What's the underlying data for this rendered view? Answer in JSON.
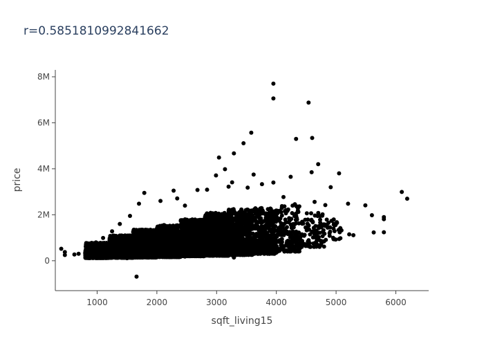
{
  "chart_data": {
    "type": "scatter",
    "title": "r=0.5851810992841662",
    "xlabel": "sqft_living15",
    "ylabel": "price",
    "xlim": [
      300,
      6550
    ],
    "ylim": [
      -1300000,
      8300000
    ],
    "x_ticks": [
      {
        "value": 1000,
        "label": "1000"
      },
      {
        "value": 2000,
        "label": "2000"
      },
      {
        "value": 3000,
        "label": "3000"
      },
      {
        "value": 4000,
        "label": "4000"
      },
      {
        "value": 5000,
        "label": "5000"
      },
      {
        "value": 6000,
        "label": "6000"
      }
    ],
    "y_ticks": [
      {
        "value": 0,
        "label": "0"
      },
      {
        "value": 2000000,
        "label": "2M"
      },
      {
        "value": 4000000,
        "label": "4M"
      },
      {
        "value": 6000000,
        "label": "6M"
      },
      {
        "value": 8000000,
        "label": "8M"
      }
    ],
    "grid": false,
    "marker_color": "#000000",
    "points": [
      [
        399,
        520000
      ],
      [
        460,
        250000
      ],
      [
        460,
        380000
      ],
      [
        620,
        270000
      ],
      [
        690,
        300000
      ],
      [
        1660,
        -690000
      ],
      [
        3950,
        7700000
      ],
      [
        3950,
        7060000
      ],
      [
        4540,
        6880000
      ],
      [
        4600,
        5340000
      ],
      [
        4330,
        5300000
      ],
      [
        3580,
        5570000
      ],
      [
        3450,
        5110000
      ],
      [
        3290,
        4670000
      ],
      [
        3040,
        4490000
      ],
      [
        3140,
        3980000
      ],
      [
        2990,
        3710000
      ],
      [
        4700,
        4200000
      ],
      [
        4590,
        3850000
      ],
      [
        5050,
        3800000
      ],
      [
        4910,
        3200000
      ],
      [
        4240,
        3650000
      ],
      [
        3950,
        3400000
      ],
      [
        3760,
        3330000
      ],
      [
        3520,
        3180000
      ],
      [
        3620,
        3750000
      ],
      [
        3260,
        3410000
      ],
      [
        3200,
        3220000
      ],
      [
        2840,
        3090000
      ],
      [
        2680,
        3080000
      ],
      [
        2280,
        3050000
      ],
      [
        1790,
        2950000
      ],
      [
        1700,
        2480000
      ],
      [
        2060,
        2600000
      ],
      [
        2340,
        2710000
      ],
      [
        2470,
        2400000
      ],
      [
        1550,
        1950000
      ],
      [
        1380,
        1600000
      ],
      [
        1250,
        1280000
      ],
      [
        1100,
        990000
      ],
      [
        980,
        800000
      ],
      [
        4120,
        2770000
      ],
      [
        4310,
        2460000
      ],
      [
        4640,
        2560000
      ],
      [
        4820,
        2420000
      ],
      [
        5200,
        2480000
      ],
      [
        5490,
        2410000
      ],
      [
        5600,
        1980000
      ],
      [
        5800,
        1900000
      ],
      [
        5800,
        1810000
      ],
      [
        5800,
        1240000
      ],
      [
        5630,
        1230000
      ],
      [
        5290,
        1110000
      ],
      [
        5220,
        1150000
      ],
      [
        5060,
        1240000
      ],
      [
        4890,
        1200000
      ],
      [
        4740,
        870000
      ],
      [
        4620,
        750000
      ],
      [
        4380,
        440000
      ],
      [
        6100,
        2990000
      ],
      [
        6190,
        2700000
      ],
      [
        1040,
        200000
      ],
      [
        1500,
        110000
      ],
      [
        1950,
        150000
      ],
      [
        2470,
        180000
      ],
      [
        3000,
        220000
      ],
      [
        3290,
        140000
      ],
      [
        3550,
        330000
      ],
      [
        4050,
        500000
      ],
      [
        4290,
        600000
      ],
      [
        4490,
        1450000
      ],
      [
        4790,
        1580000
      ],
      [
        5090,
        1320000
      ]
    ],
    "density_bands": [
      {
        "x0": 800,
        "x1": 1200,
        "y_low": 120000,
        "y_high": 780000,
        "n": 700
      },
      {
        "x0": 1200,
        "x1": 1600,
        "y_low": 130000,
        "y_high": 1100000,
        "n": 1100
      },
      {
        "x0": 1600,
        "x1": 2000,
        "y_low": 140000,
        "y_high": 1350000,
        "n": 1100
      },
      {
        "x0": 2000,
        "x1": 2400,
        "y_low": 160000,
        "y_high": 1550000,
        "n": 1000
      },
      {
        "x0": 2400,
        "x1": 2800,
        "y_low": 200000,
        "y_high": 1800000,
        "n": 900
      },
      {
        "x0": 2800,
        "x1": 3200,
        "y_low": 220000,
        "y_high": 2100000,
        "n": 750
      },
      {
        "x0": 3200,
        "x1": 3600,
        "y_low": 250000,
        "y_high": 2250000,
        "n": 550
      },
      {
        "x0": 3600,
        "x1": 4000,
        "y_low": 300000,
        "y_high": 2300000,
        "n": 350
      },
      {
        "x0": 4000,
        "x1": 4400,
        "y_low": 400000,
        "y_high": 2400000,
        "n": 200
      },
      {
        "x0": 4400,
        "x1": 4800,
        "y_low": 600000,
        "y_high": 2100000,
        "n": 90
      },
      {
        "x0": 4800,
        "x1": 5100,
        "y_low": 900000,
        "y_high": 1800000,
        "n": 30
      }
    ]
  }
}
